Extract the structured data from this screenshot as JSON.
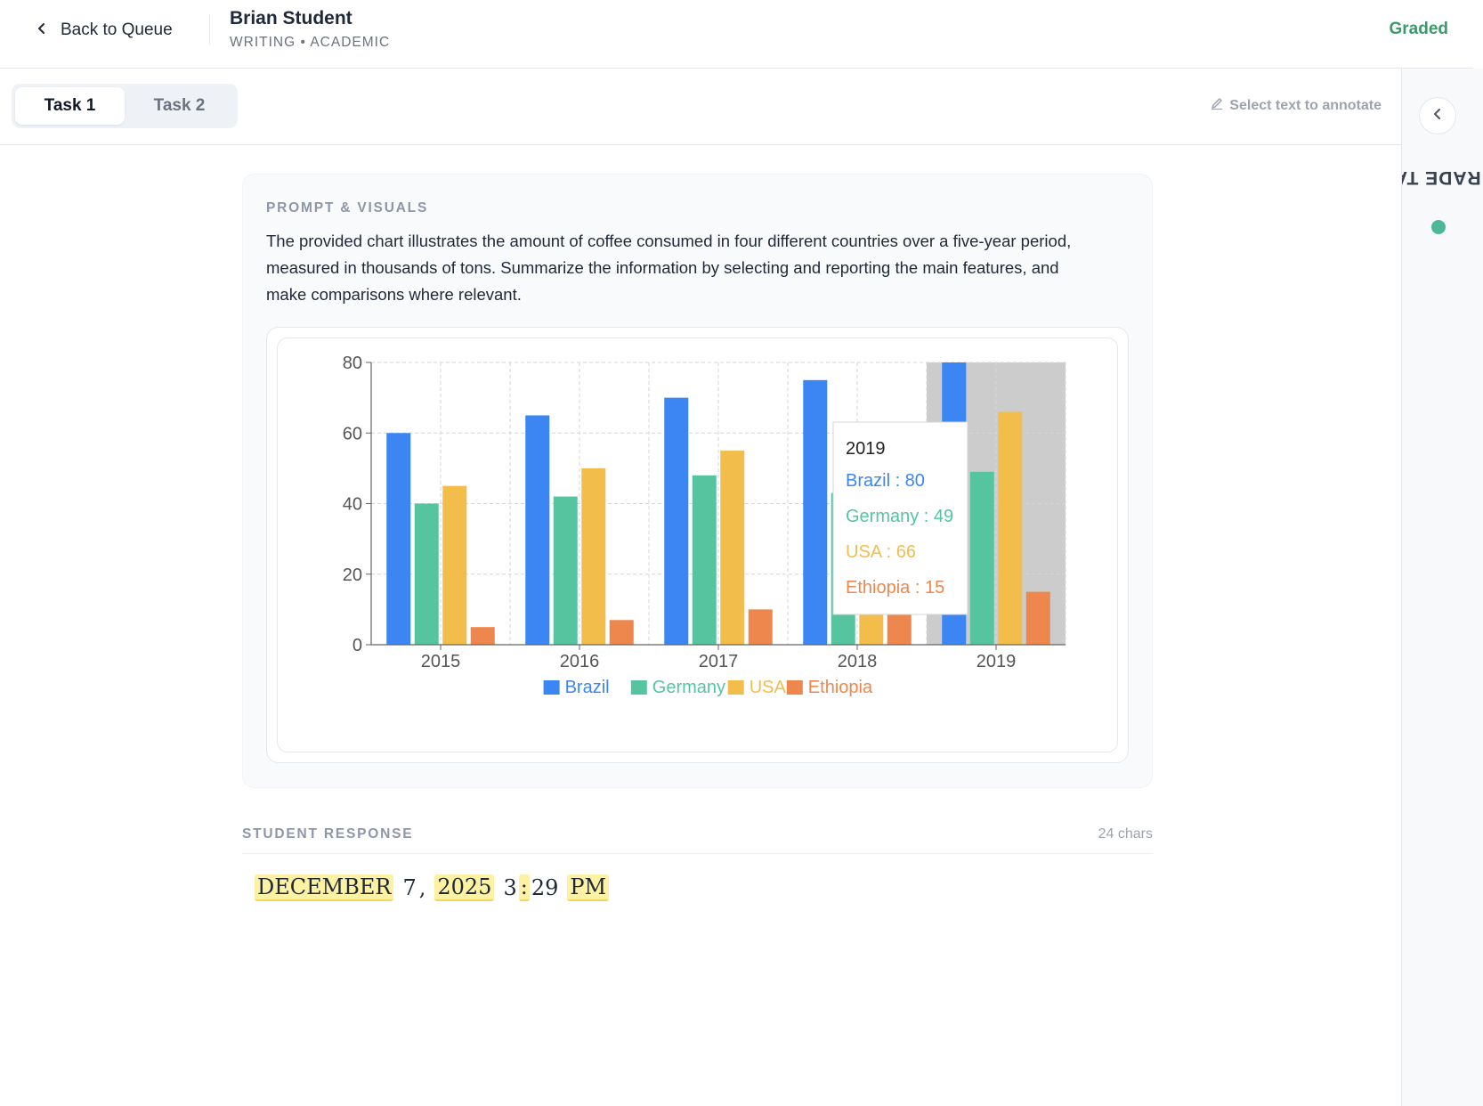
{
  "header": {
    "back_label": "Back to Queue",
    "student_name": "Brian Student",
    "meta": "WRITING • ACADEMIC",
    "status": "Graded"
  },
  "tabs": [
    {
      "label": "Task 1",
      "active": true
    },
    {
      "label": "Task 2",
      "active": false
    }
  ],
  "annotate_hint": "Select text to annotate",
  "side_panel": {
    "label": "GRADE TA"
  },
  "prompt": {
    "section_label": "PROMPT & VISUALS",
    "text": "The provided chart illustrates the amount of coffee consumed in four different countries over a five-year period, measured in thousands of tons. Summarize the information by selecting and reporting the main features, and make comparisons where relevant."
  },
  "response": {
    "section_label": "STUDENT RESPONSE",
    "char_count": "24 chars",
    "tokens": [
      {
        "text": "DECEMBER",
        "highlighted": true
      },
      {
        "text": "7",
        "highlighted": false
      },
      {
        "text": ",",
        "highlighted": false
      },
      {
        "text": "2025",
        "highlighted": true
      },
      {
        "text": "3",
        "highlighted": false
      },
      {
        "text": ":",
        "highlighted": true
      },
      {
        "text": "29",
        "highlighted": false
      },
      {
        "text": "PM",
        "highlighted": true
      }
    ]
  },
  "colors": {
    "Brazil": "#3b86f3",
    "Germany": "#57c4a0",
    "USA": "#f3bd4b",
    "Ethiopia": "#ee874d",
    "status": "#3b9a6b",
    "highlight": "#fdf1a3"
  },
  "chart_data": {
    "type": "bar",
    "categories": [
      "2015",
      "2016",
      "2017",
      "2018",
      "2019"
    ],
    "series": [
      {
        "name": "Brazil",
        "values": [
          60,
          65,
          70,
          75,
          80
        ]
      },
      {
        "name": "Germany",
        "values": [
          40,
          42,
          48,
          43,
          49
        ]
      },
      {
        "name": "USA",
        "values": [
          45,
          50,
          55,
          58,
          66
        ]
      },
      {
        "name": "Ethiopia",
        "values": [
          5,
          7,
          10,
          12,
          15
        ]
      }
    ],
    "ylim": [
      0,
      80
    ],
    "yticks": [
      0,
      20,
      40,
      60,
      80
    ],
    "grid": true,
    "legend": "bottom",
    "tooltip": {
      "category": "2019",
      "lines": [
        "Brazil : 80",
        "Germany : 49",
        "USA : 66",
        "Ethiopia : 15"
      ]
    }
  }
}
